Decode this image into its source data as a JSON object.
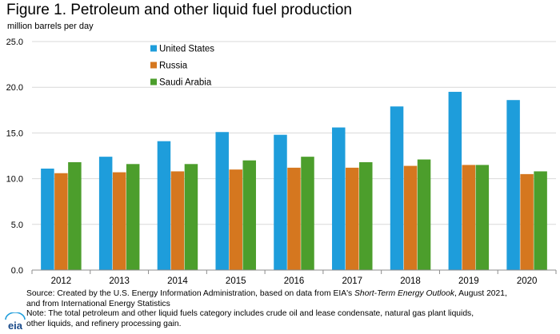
{
  "header": {
    "title": "Figure 1. Petroleum and other liquid fuel production",
    "unit_label": "million barrels per day"
  },
  "footer": {
    "source_prefix": "Source: Created by the U.S. Energy Information Administration, based on data from EIA's ",
    "source_italic": "Short-Term Energy Outlook",
    "source_suffix": ", August 2021,",
    "source_line2": "and from International Energy Statistics",
    "note_line1": "Note: The total petroleum and other liquid fuels category includes crude oil and lease condensate, natural gas plant liquids,",
    "note_line2": "other liquids, and refinery processing gain."
  },
  "logo": {
    "text": "eia"
  },
  "chart_data": {
    "type": "bar",
    "categories": [
      "2012",
      "2013",
      "2014",
      "2015",
      "2016",
      "2017",
      "2018",
      "2019",
      "2020"
    ],
    "series": [
      {
        "name": "United States",
        "color": "#1e9ddb",
        "values": [
          11.1,
          12.4,
          14.1,
          15.1,
          14.8,
          15.6,
          17.9,
          19.5,
          18.6
        ]
      },
      {
        "name": "Russia",
        "color": "#d5771f",
        "values": [
          10.6,
          10.7,
          10.8,
          11.0,
          11.2,
          11.2,
          11.4,
          11.5,
          10.5
        ]
      },
      {
        "name": "Saudi Arabia",
        "color": "#4c9e2c",
        "values": [
          11.8,
          11.6,
          11.6,
          12.0,
          12.4,
          11.8,
          12.1,
          11.5,
          10.8
        ]
      }
    ],
    "yticks": [
      "0.0",
      "5.0",
      "10.0",
      "15.0",
      "20.0",
      "25.0"
    ],
    "ylim": [
      0,
      25
    ],
    "grid": true,
    "legend_position": "top-left"
  }
}
